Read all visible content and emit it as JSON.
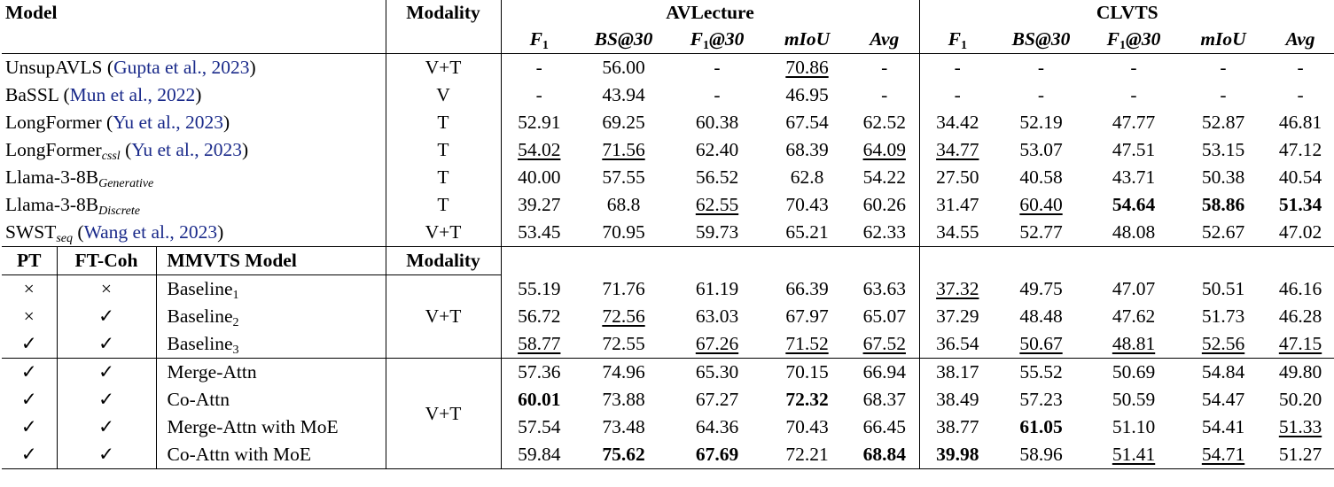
{
  "header": {
    "model": "Model",
    "modality": "Modality",
    "avlecture": "AVLecture",
    "clvts": "CLVTS",
    "metrics": [
      "F",
      "BS@30",
      "F",
      "mIoU",
      "Avg"
    ],
    "metric_sub_1": "1",
    "metric_suffix_f1_30": "@30"
  },
  "top_rows": [
    {
      "name": "UnsupAVLS (",
      "cite": "Gupta et al., 2023",
      "close": ")",
      "sub": "",
      "modality": "V+T",
      "av": [
        "-",
        "56.00",
        "-",
        "70.86",
        "-"
      ],
      "cl": [
        "-",
        "-",
        "-",
        "-",
        "-"
      ]
    },
    {
      "name": "BaSSL (",
      "cite": "Mun et al., 2022",
      "close": ")",
      "sub": "",
      "modality": "V",
      "av": [
        "-",
        "43.94",
        "-",
        "46.95",
        "-"
      ],
      "cl": [
        "-",
        "-",
        "-",
        "-",
        "-"
      ]
    },
    {
      "name": "LongFormer (",
      "cite": "Yu et al., 2023",
      "close": ")",
      "sub": "",
      "modality": "T",
      "av": [
        "52.91",
        "69.25",
        "60.38",
        "67.54",
        "62.52"
      ],
      "cl": [
        "34.42",
        "52.19",
        "47.77",
        "52.87",
        "46.81"
      ]
    },
    {
      "name": "LongFormer",
      "sub": "cssl",
      "cite": "Yu et al., 2023",
      "modality": "T",
      "av": [
        "54.02",
        "71.56",
        "62.40",
        "68.39",
        "64.09"
      ],
      "cl": [
        "34.77",
        "53.07",
        "47.51",
        "53.15",
        "47.12"
      ]
    },
    {
      "name": "Llama-3-8B",
      "sub": "Generative",
      "modality": "T",
      "av": [
        "40.00",
        "57.55",
        "56.52",
        "62.8",
        "54.22"
      ],
      "cl": [
        "27.50",
        "40.58",
        "43.71",
        "50.38",
        "40.54"
      ]
    },
    {
      "name": "Llama-3-8B",
      "sub": "Discrete",
      "modality": "T",
      "av": [
        "39.27",
        "68.8",
        "62.55",
        "70.43",
        "60.26"
      ],
      "cl": [
        "31.47",
        "60.40",
        "54.64",
        "58.86",
        "51.34"
      ]
    },
    {
      "name": "SWST",
      "sub": "seq",
      "cite": "Wang et al., 2023",
      "modality": "V+T",
      "av": [
        "53.45",
        "70.95",
        "59.73",
        "65.21",
        "62.33"
      ],
      "cl": [
        "34.55",
        "52.77",
        "48.08",
        "52.67",
        "47.02"
      ]
    }
  ],
  "sub_header": {
    "pt": "PT",
    "ftcoh": "FT-Coh",
    "mmvts": "MMVTS Model",
    "modality": "Modality"
  },
  "marks": {
    "cross": "×",
    "check": "✓"
  },
  "baseline_modality": "V+T",
  "baseline_rows": [
    {
      "pt": "×",
      "ft": "×",
      "name": "Baseline",
      "sub": "1",
      "av": [
        "55.19",
        "71.76",
        "61.19",
        "66.39",
        "63.63"
      ],
      "cl": [
        "37.32",
        "49.75",
        "47.07",
        "50.51",
        "46.16"
      ]
    },
    {
      "pt": "×",
      "ft": "✓",
      "name": "Baseline",
      "sub": "2",
      "av": [
        "56.72",
        "72.56",
        "63.03",
        "67.97",
        "65.07"
      ],
      "cl": [
        "37.29",
        "48.48",
        "47.62",
        "51.73",
        "46.28"
      ]
    },
    {
      "pt": "✓",
      "ft": "✓",
      "name": "Baseline",
      "sub": "3",
      "av": [
        "58.77",
        "72.55",
        "67.26",
        "71.52",
        "67.52"
      ],
      "cl": [
        "36.54",
        "50.67",
        "48.81",
        "52.56",
        "47.15"
      ]
    }
  ],
  "ours_modality": "V+T",
  "ours_rows": [
    {
      "pt": "✓",
      "ft": "✓",
      "name": "Merge-Attn",
      "av": [
        "57.36",
        "74.96",
        "65.30",
        "70.15",
        "66.94"
      ],
      "cl": [
        "38.17",
        "55.52",
        "50.69",
        "54.84",
        "49.80"
      ]
    },
    {
      "pt": "✓",
      "ft": "✓",
      "name": "Co-Attn",
      "av": [
        "60.01",
        "73.88",
        "67.27",
        "72.32",
        "68.37"
      ],
      "cl": [
        "38.49",
        "57.23",
        "50.59",
        "54.47",
        "50.20"
      ]
    },
    {
      "pt": "✓",
      "ft": "✓",
      "name": "Merge-Attn with MoE",
      "av": [
        "57.54",
        "73.48",
        "64.36",
        "70.43",
        "66.45"
      ],
      "cl": [
        "38.77",
        "61.05",
        "51.10",
        "54.41",
        "51.33"
      ]
    },
    {
      "pt": "✓",
      "ft": "✓",
      "name": "Co-Attn with MoE",
      "av": [
        "59.84",
        "75.62",
        "67.69",
        "72.21",
        "68.84"
      ],
      "cl": [
        "39.98",
        "58.96",
        "51.41",
        "54.71",
        "51.27"
      ]
    }
  ]
}
